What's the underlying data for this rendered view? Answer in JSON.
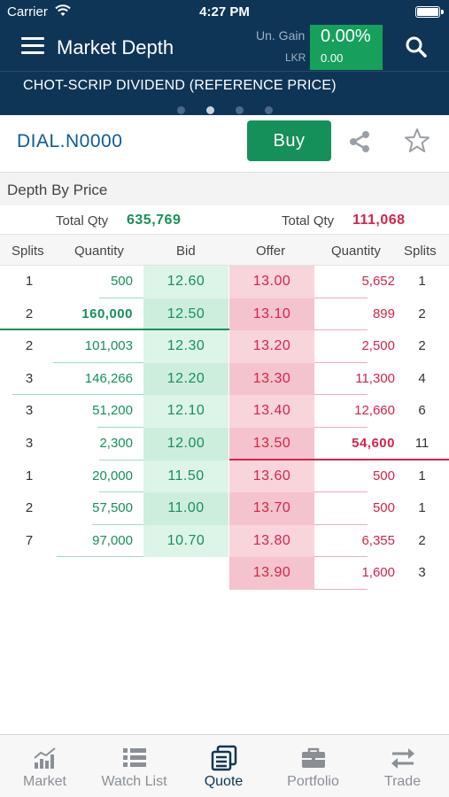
{
  "status_bar": {
    "carrier": "Carrier",
    "time": "4:27 PM"
  },
  "header": {
    "title": "Market Depth",
    "gain_label": "Un. Gain",
    "currency_label": "LKR",
    "gain_percent": "0.00%",
    "gain_amount": "0.00"
  },
  "ticker": {
    "text": "CHOT-SCRIP DIVIDEND (REFERENCE PRICE)",
    "page_count": 4,
    "active_page": 2
  },
  "symbol": {
    "code": "DIAL.N0000",
    "buy_label": "Buy"
  },
  "depth": {
    "section_title": "Depth By Price",
    "bid_total_label": "Total Qty",
    "bid_total_value": "635,769",
    "offer_total_label": "Total Qty",
    "offer_total_value": "111,068",
    "columns": [
      "Splits",
      "Quantity",
      "Bid",
      "Offer",
      "Quantity",
      "Splits"
    ],
    "rows": [
      {
        "bid_splits": "1",
        "bid_qty": "500",
        "bid": "12.60",
        "offer": "13.00",
        "offer_qty": "5,652",
        "offer_splits": "1"
      },
      {
        "bid_splits": "2",
        "bid_qty": "160,000",
        "bid": "12.50",
        "offer": "13.10",
        "offer_qty": "899",
        "offer_splits": "2"
      },
      {
        "bid_splits": "2",
        "bid_qty": "101,003",
        "bid": "12.30",
        "offer": "13.20",
        "offer_qty": "2,500",
        "offer_splits": "2"
      },
      {
        "bid_splits": "3",
        "bid_qty": "146,266",
        "bid": "12.20",
        "offer": "13.30",
        "offer_qty": "11,300",
        "offer_splits": "4"
      },
      {
        "bid_splits": "3",
        "bid_qty": "51,200",
        "bid": "12.10",
        "offer": "13.40",
        "offer_qty": "12,660",
        "offer_splits": "6"
      },
      {
        "bid_splits": "3",
        "bid_qty": "2,300",
        "bid": "12.00",
        "offer": "13.50",
        "offer_qty": "54,600",
        "offer_splits": "11"
      },
      {
        "bid_splits": "1",
        "bid_qty": "20,000",
        "bid": "11.50",
        "offer": "13.60",
        "offer_qty": "500",
        "offer_splits": "1"
      },
      {
        "bid_splits": "2",
        "bid_qty": "57,500",
        "bid": "11.00",
        "offer": "13.70",
        "offer_qty": "500",
        "offer_splits": "1"
      },
      {
        "bid_splits": "7",
        "bid_qty": "97,000",
        "bid": "10.70",
        "offer": "13.80",
        "offer_qty": "6,355",
        "offer_splits": "2"
      },
      {
        "bid_splits": "",
        "bid_qty": "",
        "bid": "",
        "offer": "13.90",
        "offer_qty": "1,600",
        "offer_splits": "3"
      }
    ]
  },
  "tabs": [
    {
      "label": "Market",
      "icon": "market-chart-icon"
    },
    {
      "label": "Watch List",
      "icon": "list-icon"
    },
    {
      "label": "Quote",
      "icon": "quote-icon",
      "active": true
    },
    {
      "label": "Portfolio",
      "icon": "briefcase-icon"
    },
    {
      "label": "Trade",
      "icon": "swap-arrows-icon"
    }
  ],
  "colors": {
    "navy": "#0f3556",
    "green": "#16905a",
    "red": "#d3244d"
  }
}
